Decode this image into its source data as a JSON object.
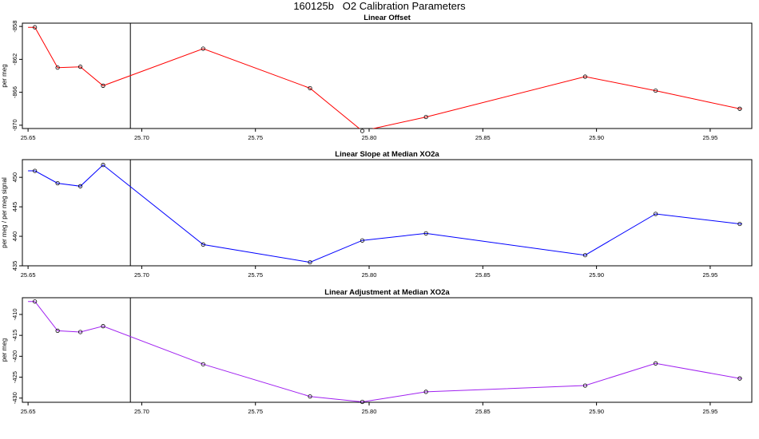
{
  "figure": {
    "title": "160125b   O2 Calibration Parameters"
  },
  "chart_data": [
    {
      "type": "line",
      "title": "Linear Offset",
      "xlabel": "",
      "ylabel": "per meg",
      "xlim": [
        25.6475,
        25.9683
      ],
      "ylim": [
        -870.4,
        -857.6
      ],
      "x_ticks": [
        25.65,
        25.7,
        25.75,
        25.8,
        25.85,
        25.9,
        25.95
      ],
      "x_tick_labels": [
        "25.65",
        "25.70",
        "25.75",
        "25.80",
        "25.85",
        "25.90",
        "25.95"
      ],
      "y_ticks": [
        -858,
        -862,
        -866,
        -870
      ],
      "y_tick_labels": [
        "-858",
        "-862",
        "-866",
        "-870"
      ],
      "vline_x": 25.695,
      "color": "#ff0000",
      "line_start": {
        "x": 25.65,
        "y": -858.1
      },
      "line_end": {
        "x": 25.964,
        "y": -868.0
      },
      "points": [
        {
          "x": 25.653,
          "y": -858.1
        },
        {
          "x": 25.663,
          "y": -863.0
        },
        {
          "x": 25.673,
          "y": -862.9
        },
        {
          "x": 25.683,
          "y": -865.2
        },
        {
          "x": 25.727,
          "y": -860.7
        },
        {
          "x": 25.774,
          "y": -865.5
        },
        {
          "x": 25.797,
          "y": -870.7
        },
        {
          "x": 25.825,
          "y": -869.0
        },
        {
          "x": 25.895,
          "y": -864.1
        },
        {
          "x": 25.926,
          "y": -865.8
        },
        {
          "x": 25.963,
          "y": -868.0
        }
      ],
      "grid": false,
      "legend": "none"
    },
    {
      "type": "line",
      "title": "Linear Slope at Median XO2a",
      "xlabel": "",
      "ylabel": "per meg / per meg signal",
      "xlim": [
        25.6475,
        25.9683
      ],
      "ylim": [
        435,
        453
      ],
      "x_ticks": [
        25.65,
        25.7,
        25.75,
        25.8,
        25.85,
        25.9,
        25.95
      ],
      "x_tick_labels": [
        "25.65",
        "25.70",
        "25.75",
        "25.80",
        "25.85",
        "25.90",
        "25.95"
      ],
      "y_ticks": [
        435,
        440,
        445,
        450
      ],
      "y_tick_labels": [
        "435",
        "440",
        "445",
        "450"
      ],
      "vline_x": 25.695,
      "color": "#0000ff",
      "line_start": {
        "x": 25.65,
        "y": 451.1
      },
      "line_end": {
        "x": 25.964,
        "y": 442.1
      },
      "points": [
        {
          "x": 25.653,
          "y": 451.1
        },
        {
          "x": 25.663,
          "y": 449.0
        },
        {
          "x": 25.673,
          "y": 448.5
        },
        {
          "x": 25.683,
          "y": 452.1
        },
        {
          "x": 25.727,
          "y": 438.6
        },
        {
          "x": 25.774,
          "y": 435.6
        },
        {
          "x": 25.797,
          "y": 439.3
        },
        {
          "x": 25.825,
          "y": 440.5
        },
        {
          "x": 25.895,
          "y": 436.8
        },
        {
          "x": 25.926,
          "y": 443.8
        },
        {
          "x": 25.963,
          "y": 442.1
        }
      ],
      "grid": false,
      "legend": "none"
    },
    {
      "type": "line",
      "title": "Linear Adjustment at Median XO2a",
      "xlabel": "",
      "ylabel": "per meg",
      "xlim": [
        25.6475,
        25.9683
      ],
      "ylim": [
        -431,
        -406
      ],
      "x_ticks": [
        25.65,
        25.7,
        25.75,
        25.8,
        25.85,
        25.9,
        25.95
      ],
      "x_tick_labels": [
        "25.65",
        "25.70",
        "25.75",
        "25.80",
        "25.85",
        "25.90",
        "25.95"
      ],
      "y_ticks": [
        -410,
        -415,
        -420,
        -425,
        -430
      ],
      "y_tick_labels": [
        "-410",
        "-415",
        "-420",
        "-425",
        "-430"
      ],
      "vline_x": 25.695,
      "color": "#a020f0",
      "line_start": {
        "x": 25.65,
        "y": -406.9
      },
      "line_end": {
        "x": 25.964,
        "y": -425.3
      },
      "points": [
        {
          "x": 25.653,
          "y": -406.9
        },
        {
          "x": 25.663,
          "y": -413.9
        },
        {
          "x": 25.673,
          "y": -414.2
        },
        {
          "x": 25.683,
          "y": -412.8
        },
        {
          "x": 25.727,
          "y": -421.9
        },
        {
          "x": 25.774,
          "y": -429.6
        },
        {
          "x": 25.797,
          "y": -430.9
        },
        {
          "x": 25.825,
          "y": -428.5
        },
        {
          "x": 25.895,
          "y": -427.0
        },
        {
          "x": 25.926,
          "y": -421.7
        },
        {
          "x": 25.963,
          "y": -425.3
        }
      ],
      "grid": false,
      "legend": "none"
    }
  ]
}
